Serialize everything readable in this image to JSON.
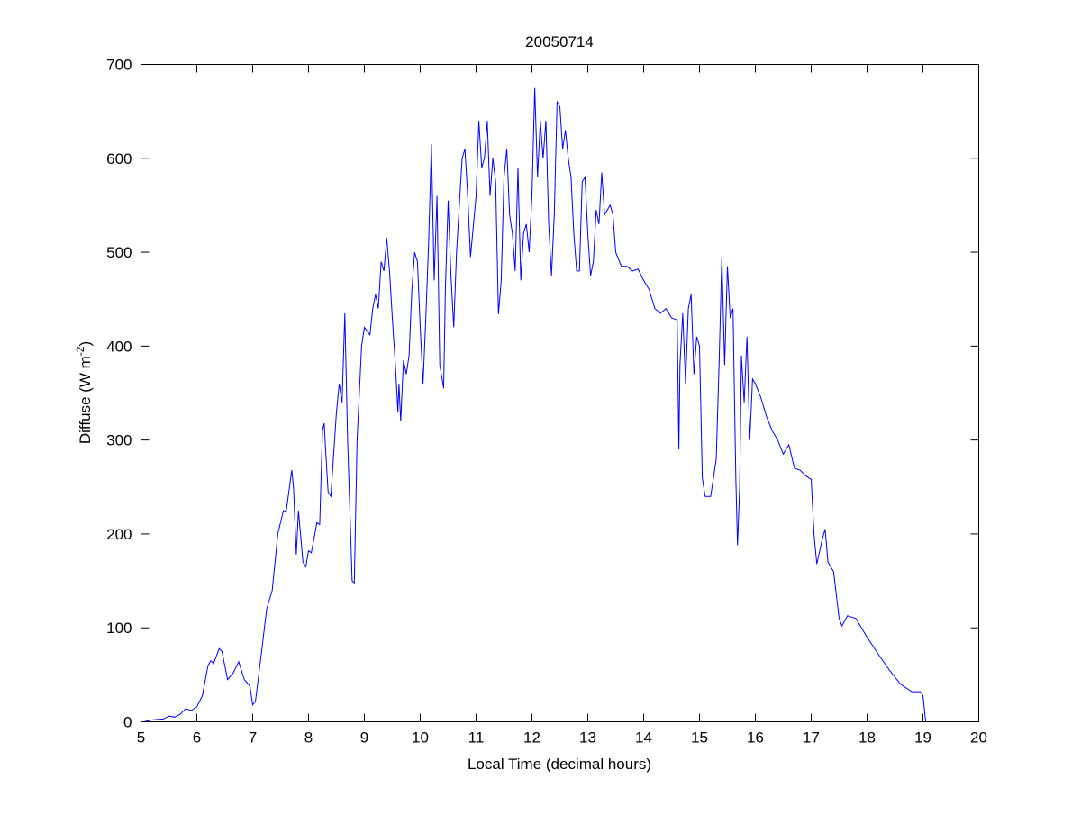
{
  "chart_data": {
    "type": "line",
    "title": "20050714",
    "xlabel": "Local Time (decimal hours)",
    "ylabel": "Diffuse (W m^-2)",
    "ylabel_parts": {
      "main": "Diffuse (W m",
      "sup": "-2",
      "close": ")"
    },
    "xlim": [
      5,
      20
    ],
    "ylim": [
      0,
      700
    ],
    "xticks": [
      5,
      6,
      7,
      8,
      9,
      10,
      11,
      12,
      13,
      14,
      15,
      16,
      17,
      18,
      19,
      20
    ],
    "yticks": [
      0,
      100,
      200,
      300,
      400,
      500,
      600,
      700
    ],
    "grid": false,
    "line_color": "#0000ff",
    "series": [
      {
        "x": [
          5.05,
          5.2,
          5.4,
          5.5,
          5.6,
          5.7,
          5.8,
          5.9,
          6.0,
          6.1,
          6.2,
          6.25,
          6.3,
          6.4,
          6.45,
          6.55,
          6.65,
          6.75,
          6.85,
          6.95,
          7.0,
          7.05,
          7.15,
          7.25,
          7.35,
          7.45,
          7.55,
          7.6,
          7.7,
          7.73,
          7.78,
          7.82,
          7.9,
          7.95,
          8.0,
          8.05,
          8.15,
          8.2,
          8.25,
          8.28,
          8.3,
          8.35,
          8.4,
          8.5,
          8.55,
          8.6,
          8.65,
          8.7,
          8.78,
          8.82,
          8.87,
          8.95,
          9.0,
          9.1,
          9.15,
          9.2,
          9.25,
          9.3,
          9.35,
          9.4,
          9.45,
          9.5,
          9.55,
          9.6,
          9.62,
          9.65,
          9.7,
          9.75,
          9.8,
          9.85,
          9.9,
          9.95,
          10.0,
          10.05,
          10.1,
          10.15,
          10.2,
          10.25,
          10.3,
          10.35,
          10.42,
          10.45,
          10.5,
          10.55,
          10.6,
          10.65,
          10.75,
          10.8,
          10.85,
          10.9,
          11.0,
          11.05,
          11.1,
          11.15,
          11.2,
          11.25,
          11.3,
          11.35,
          11.4,
          11.45,
          11.5,
          11.55,
          11.6,
          11.65,
          11.7,
          11.75,
          11.8,
          11.85,
          11.9,
          11.95,
          12.0,
          12.05,
          12.1,
          12.15,
          12.2,
          12.25,
          12.3,
          12.35,
          12.4,
          12.45,
          12.5,
          12.55,
          12.6,
          12.65,
          12.7,
          12.75,
          12.8,
          12.85,
          12.9,
          12.95,
          13.0,
          13.05,
          13.1,
          13.15,
          13.2,
          13.25,
          13.3,
          13.4,
          13.45,
          13.5,
          13.6,
          13.7,
          13.8,
          13.9,
          14.0,
          14.1,
          14.2,
          14.3,
          14.4,
          14.5,
          14.6,
          14.63,
          14.65,
          14.7,
          14.75,
          14.8,
          14.85,
          14.9,
          14.95,
          15.0,
          15.05,
          15.1,
          15.2,
          15.3,
          15.35,
          15.4,
          15.45,
          15.5,
          15.55,
          15.6,
          15.65,
          15.68,
          15.72,
          15.75,
          15.8,
          15.85,
          15.9,
          15.95,
          16.0,
          16.1,
          16.2,
          16.3,
          16.4,
          16.5,
          16.6,
          16.7,
          16.8,
          16.9,
          17.0,
          17.05,
          17.1,
          17.2,
          17.25,
          17.3,
          17.4,
          17.5,
          17.55,
          17.65,
          17.8,
          18.0,
          18.2,
          18.4,
          18.6,
          18.8,
          18.95,
          19.0,
          19.05
        ],
        "y": [
          0,
          2,
          3,
          6,
          5,
          8,
          14,
          12,
          16,
          28,
          60,
          65,
          62,
          78,
          75,
          45,
          52,
          64,
          45,
          38,
          18,
          22,
          70,
          120,
          140,
          200,
          225,
          224,
          268,
          250,
          178,
          225,
          170,
          165,
          182,
          180,
          212,
          210,
          310,
          318,
          296,
          245,
          240,
          330,
          360,
          340,
          435,
          300,
          150,
          148,
          300,
          400,
          420,
          412,
          440,
          455,
          440,
          490,
          480,
          515,
          480,
          430,
          385,
          330,
          360,
          320,
          385,
          370,
          390,
          460,
          500,
          490,
          420,
          360,
          430,
          510,
          615,
          470,
          560,
          380,
          355,
          460,
          555,
          475,
          420,
          500,
          600,
          610,
          560,
          495,
          560,
          640,
          590,
          600,
          640,
          560,
          600,
          575,
          434,
          470,
          580,
          610,
          540,
          520,
          480,
          590,
          470,
          520,
          530,
          500,
          560,
          675,
          580,
          640,
          600,
          640,
          530,
          475,
          540,
          660,
          655,
          610,
          630,
          600,
          580,
          520,
          480,
          480,
          575,
          580,
          520,
          475,
          490,
          545,
          530,
          585,
          540,
          550,
          540,
          500,
          485,
          485,
          480,
          482,
          470,
          460,
          440,
          435,
          440,
          430,
          428,
          290,
          380,
          435,
          360,
          440,
          455,
          370,
          410,
          400,
          260,
          240,
          240,
          280,
          380,
          495,
          380,
          485,
          430,
          440,
          260,
          188,
          250,
          390,
          340,
          410,
          300,
          365,
          360,
          345,
          325,
          310,
          300,
          285,
          295,
          270,
          268,
          262,
          258,
          200,
          168,
          195,
          205,
          170,
          160,
          110,
          102,
          113,
          110,
          90,
          72,
          55,
          40,
          32,
          32,
          28,
          0
        ]
      }
    ]
  }
}
